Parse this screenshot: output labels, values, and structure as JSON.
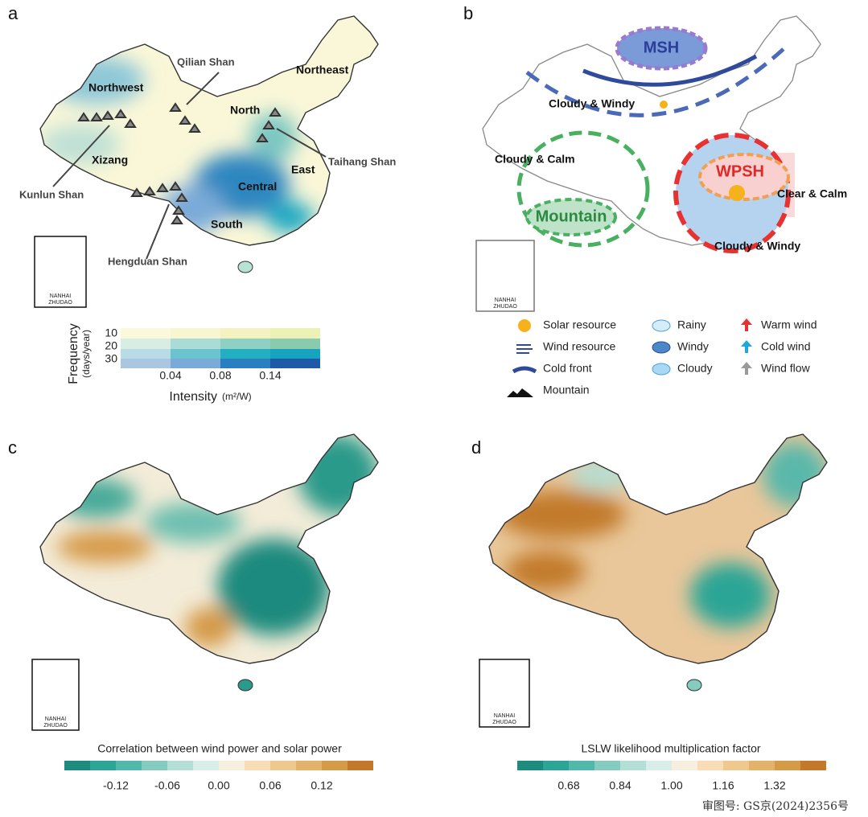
{
  "panels": [
    {
      "label": "a",
      "regions": [
        "Northwest",
        "Northeast",
        "North",
        "Xizang",
        "East",
        "Central",
        "South"
      ],
      "mountains": [
        "Qilian Shan",
        "Kunlun Shan",
        "Taihang Shan",
        "Hengduan Shan"
      ],
      "inset": [
        "NANHAI",
        "ZHUDAO"
      ],
      "colorbar": {
        "y_title": "Frequency",
        "y_unit": "(days/year)",
        "y_ticks": [
          "10",
          "20",
          "30"
        ],
        "x_title": "Intensity",
        "x_unit": "(m²/W)",
        "x_ticks": [
          "0.04",
          "0.08",
          "0.14"
        ]
      }
    },
    {
      "label": "b",
      "systems": [
        "MSH",
        "WPSH",
        "Mountain"
      ],
      "states": [
        "Cloudy & Windy",
        "Cloudy & Calm",
        "Clear & Calm",
        "Cloudy & Windy"
      ],
      "inset": [
        "NANHAI",
        "ZHUDAO"
      ],
      "legend": [
        "Solar resource",
        "Wind resource",
        "Cold front",
        "Mountain",
        "Rainy",
        "Windy",
        "Cloudy",
        "Warm wind",
        "Cold wind",
        "Wind flow"
      ]
    },
    {
      "label": "c",
      "inset": [
        "NANHAI",
        "ZHUDAO"
      ],
      "colorbar": {
        "title": "Correlation between wind power and solar power",
        "ticks": [
          "-0.12",
          "-0.06",
          "0.00",
          "0.06",
          "0.12"
        ]
      }
    },
    {
      "label": "d",
      "inset": [
        "NANHAI",
        "ZHUDAO"
      ],
      "colorbar": {
        "title": "LSLW likelihood multiplication factor",
        "ticks": [
          "0.68",
          "0.84",
          "1.00",
          "1.16",
          "1.32"
        ]
      }
    }
  ],
  "approval": "审图号: GS京(2024)2356号"
}
